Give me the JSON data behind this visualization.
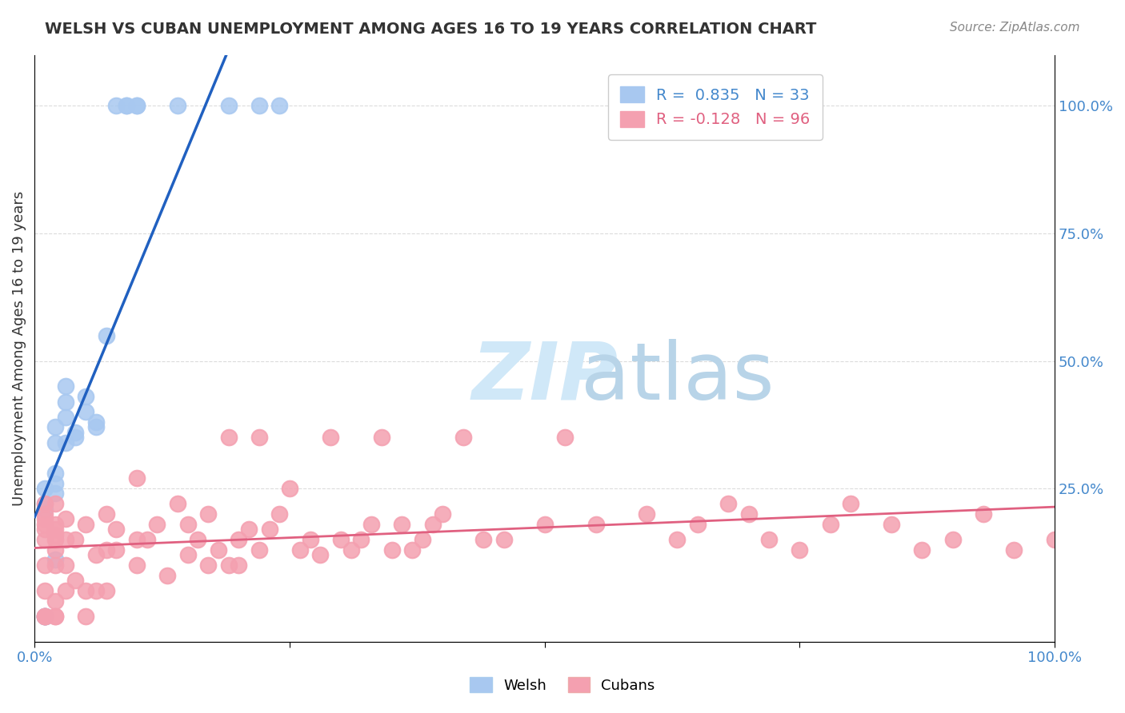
{
  "title": "WELSH VS CUBAN UNEMPLOYMENT AMONG AGES 16 TO 19 YEARS CORRELATION CHART",
  "source": "Source: ZipAtlas.com",
  "xlabel": "",
  "ylabel": "Unemployment Among Ages 16 to 19 years",
  "xlim": [
    0.0,
    1.0
  ],
  "ylim": [
    -0.05,
    1.1
  ],
  "x_tick_labels": [
    "0.0%",
    "100.0%"
  ],
  "y_tick_labels": [
    "25.0%",
    "50.0%",
    "75.0%",
    "100.0%"
  ],
  "y_tick_positions": [
    0.25,
    0.5,
    0.75,
    1.0
  ],
  "welsh_R": 0.835,
  "welsh_N": 33,
  "cuban_R": -0.128,
  "cuban_N": 96,
  "welsh_color": "#a8c8f0",
  "cuban_color": "#f4a0b0",
  "welsh_line_color": "#2060c0",
  "cuban_line_color": "#e06080",
  "watermark": "ZIPatlas",
  "watermark_color": "#d0e8f8",
  "welsh_x": [
    0.01,
    0.01,
    0.01,
    0.01,
    0.01,
    0.01,
    0.01,
    0.02,
    0.02,
    0.02,
    0.02,
    0.02,
    0.02,
    0.03,
    0.03,
    0.03,
    0.03,
    0.04,
    0.04,
    0.05,
    0.05,
    0.06,
    0.06,
    0.07,
    0.08,
    0.09,
    0.09,
    0.1,
    0.1,
    0.14,
    0.19,
    0.22,
    0.24
  ],
  "welsh_y": [
    0.0,
    0.0,
    0.0,
    0.0,
    0.21,
    0.22,
    0.25,
    0.11,
    0.24,
    0.26,
    0.28,
    0.34,
    0.37,
    0.34,
    0.39,
    0.42,
    0.45,
    0.35,
    0.36,
    0.4,
    0.43,
    0.37,
    0.38,
    0.55,
    1.0,
    1.0,
    1.0,
    1.0,
    1.0,
    1.0,
    1.0,
    1.0,
    1.0
  ],
  "cuban_x": [
    0.01,
    0.01,
    0.01,
    0.01,
    0.01,
    0.01,
    0.01,
    0.01,
    0.01,
    0.01,
    0.01,
    0.02,
    0.02,
    0.02,
    0.02,
    0.02,
    0.02,
    0.02,
    0.02,
    0.02,
    0.02,
    0.03,
    0.03,
    0.03,
    0.03,
    0.04,
    0.04,
    0.05,
    0.05,
    0.05,
    0.06,
    0.06,
    0.07,
    0.07,
    0.07,
    0.08,
    0.08,
    0.1,
    0.1,
    0.1,
    0.11,
    0.12,
    0.13,
    0.14,
    0.15,
    0.15,
    0.16,
    0.17,
    0.17,
    0.18,
    0.19,
    0.19,
    0.2,
    0.2,
    0.21,
    0.22,
    0.22,
    0.23,
    0.24,
    0.25,
    0.26,
    0.27,
    0.28,
    0.29,
    0.3,
    0.31,
    0.32,
    0.33,
    0.34,
    0.35,
    0.36,
    0.37,
    0.38,
    0.39,
    0.4,
    0.42,
    0.44,
    0.46,
    0.5,
    0.52,
    0.55,
    0.6,
    0.63,
    0.65,
    0.68,
    0.7,
    0.72,
    0.75,
    0.78,
    0.8,
    0.84,
    0.87,
    0.9,
    0.93,
    0.96,
    1.0
  ],
  "cuban_y": [
    0.0,
    0.0,
    0.0,
    0.05,
    0.1,
    0.15,
    0.17,
    0.18,
    0.19,
    0.2,
    0.22,
    0.0,
    0.0,
    0.03,
    0.1,
    0.13,
    0.15,
    0.16,
    0.17,
    0.18,
    0.22,
    0.05,
    0.1,
    0.15,
    0.19,
    0.07,
    0.15,
    0.0,
    0.05,
    0.18,
    0.05,
    0.12,
    0.05,
    0.13,
    0.2,
    0.13,
    0.17,
    0.1,
    0.15,
    0.27,
    0.15,
    0.18,
    0.08,
    0.22,
    0.12,
    0.18,
    0.15,
    0.1,
    0.2,
    0.13,
    0.1,
    0.35,
    0.1,
    0.15,
    0.17,
    0.13,
    0.35,
    0.17,
    0.2,
    0.25,
    0.13,
    0.15,
    0.12,
    0.35,
    0.15,
    0.13,
    0.15,
    0.18,
    0.35,
    0.13,
    0.18,
    0.13,
    0.15,
    0.18,
    0.2,
    0.35,
    0.15,
    0.15,
    0.18,
    0.35,
    0.18,
    0.2,
    0.15,
    0.18,
    0.22,
    0.2,
    0.15,
    0.13,
    0.18,
    0.22,
    0.18,
    0.13,
    0.15,
    0.2,
    0.13,
    0.15
  ]
}
